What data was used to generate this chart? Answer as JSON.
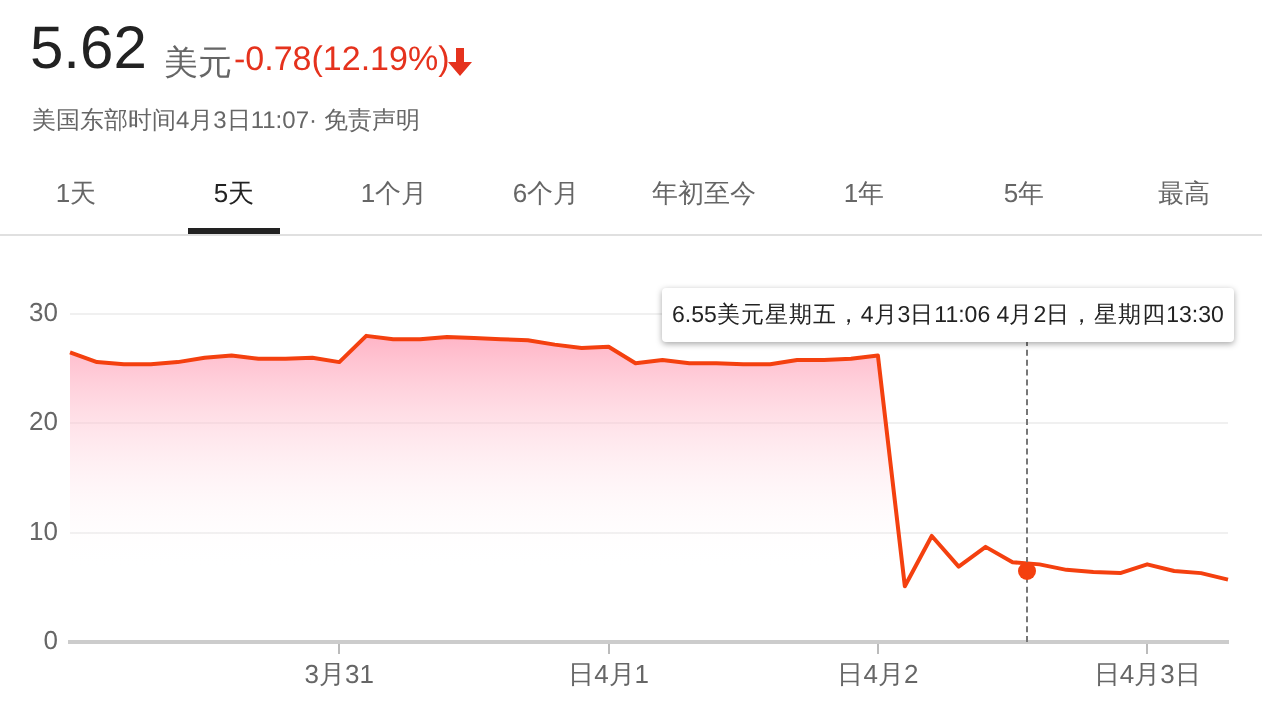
{
  "chart_data": {
    "type": "area",
    "title": "5.62",
    "annotations": [
      "美元",
      "-0.78(12.19%)",
      "美国东部时间4月3日11:07· 免责声明",
      "1天",
      "5天",
      "1个月",
      "6个月",
      "年初至今",
      "1年",
      "5年",
      "最高",
      "6.55美元星期五，4月3日11:06  4月2日，星期四13:30"
    ],
    "categories": [
      null,
      null,
      null,
      null,
      null,
      null,
      null,
      null,
      null,
      null,
      "3月31",
      null,
      null,
      null,
      null,
      null,
      null,
      null,
      null,
      null,
      "日4月1",
      null,
      null,
      null,
      null,
      null,
      null,
      null,
      null,
      null,
      "日4月2",
      null,
      null,
      null,
      null,
      null,
      null,
      null,
      null,
      null,
      "日4月3日",
      null,
      null,
      null
    ],
    "series": [
      {
        "color": "#f4400f",
        "values": [
          26.5,
          25.6,
          25.4,
          25.4,
          25.6,
          26.0,
          26.2,
          25.9,
          25.9,
          26.0,
          25.6,
          28.0,
          27.7,
          27.7,
          27.9,
          27.8,
          27.7,
          27.6,
          27.2,
          26.9,
          27.0,
          25.5,
          25.8,
          25.5,
          25.5,
          25.4,
          25.4,
          25.8,
          25.8,
          25.9,
          26.2,
          5.1,
          9.7,
          6.9,
          8.7,
          7.3,
          7.1,
          6.6,
          6.4,
          6.3,
          7.1,
          6.5,
          6.3,
          5.7
        ]
      }
    ],
    "ylim": [
      0,
      30
    ],
    "yticks": [
      0,
      10,
      20,
      30
    ],
    "grid": "y"
  }
}
